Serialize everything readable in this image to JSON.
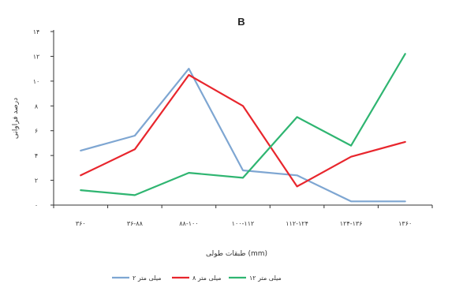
{
  "chart_data": {
    "type": "line",
    "title": "B",
    "xlabel": "طبقات طولی (mm)",
    "ylabel": "درصد فراوانی",
    "categories": [
      "۳۶۰",
      "۳۶-۸۸",
      "۸۸-۱۰۰",
      "۱۰۰-۱۱۲",
      "۱۱۲-۱۲۴",
      "۱۲۴-۱۳۶",
      "۱۳۶۰"
    ],
    "y_ticks": [
      "۰",
      "۲",
      "۴",
      "۶",
      "۸",
      "۱۰",
      "۱۲",
      "۱۴"
    ],
    "ylim": [
      0,
      14
    ],
    "grid": false,
    "legend_position": "bottom",
    "series": [
      {
        "name": "۲ میلی متر",
        "color": "#7ea6d2",
        "values": [
          4.4,
          5.6,
          11.0,
          2.8,
          2.4,
          0.3,
          0.3
        ]
      },
      {
        "name": "۸ میلی متر",
        "color": "#e8262d",
        "values": [
          2.4,
          4.5,
          10.5,
          8.0,
          1.5,
          3.9,
          5.1
        ]
      },
      {
        "name": "۱۲ میلی متر",
        "color": "#2fb571",
        "values": [
          1.2,
          0.8,
          2.6,
          2.2,
          7.1,
          4.8,
          12.2
        ]
      }
    ]
  }
}
